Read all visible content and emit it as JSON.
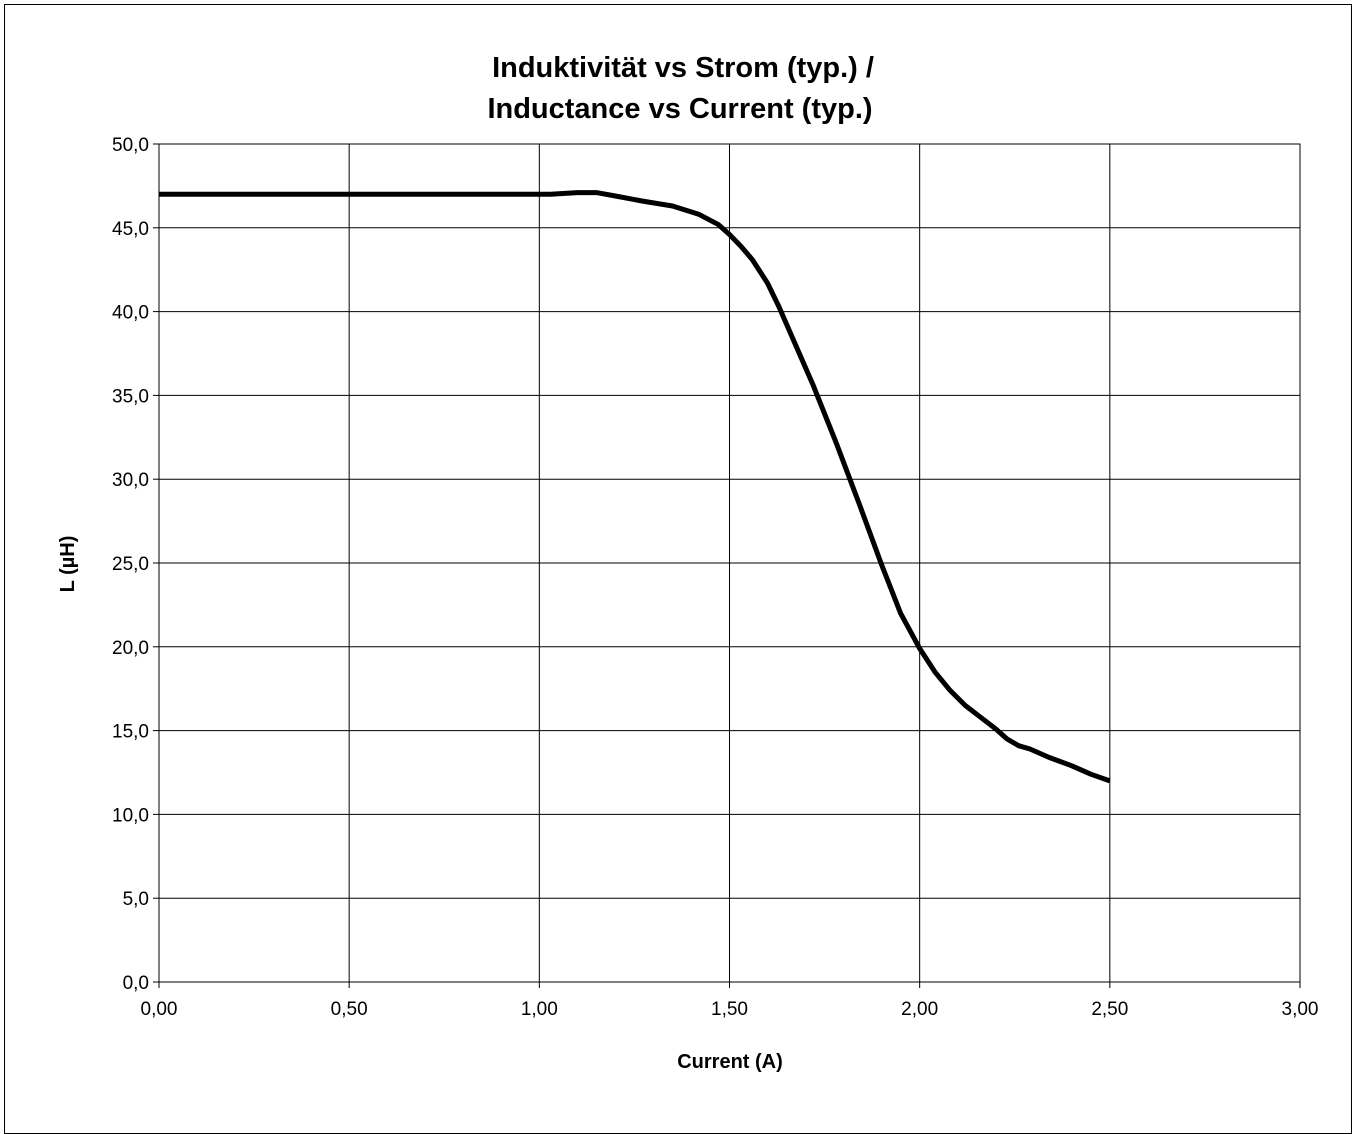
{
  "chart_data": {
    "type": "line",
    "title_lines": [
      "Induktivität vs Strom (typ.) /",
      "Inductance vs Current (typ.)"
    ],
    "xlabel": "Current (A)",
    "ylabel": "L (µH)",
    "xlim": [
      0,
      3
    ],
    "ylim": [
      0,
      50
    ],
    "x_ticks": [
      0,
      0.5,
      1,
      1.5,
      2,
      2.5,
      3
    ],
    "x_tick_labels": [
      "0,00",
      "0,50",
      "1,00",
      "1,50",
      "2,00",
      "2,50",
      "3,00"
    ],
    "y_ticks": [
      0,
      5,
      10,
      15,
      20,
      25,
      30,
      35,
      40,
      45,
      50
    ],
    "y_tick_labels": [
      "0,0",
      "5,0",
      "10,0",
      "15,0",
      "20,0",
      "25,0",
      "30,0",
      "35,0",
      "40,0",
      "45,0",
      "50,0"
    ],
    "grid": true,
    "legend": false,
    "line_color": "#000000",
    "series": [
      {
        "x": [
          0.0,
          0.1,
          0.5,
          1.0,
          1.03,
          1.1,
          1.15,
          1.2,
          1.27,
          1.35,
          1.42,
          1.47,
          1.5,
          1.53,
          1.56,
          1.6,
          1.63,
          1.67,
          1.72,
          1.78,
          1.84,
          1.9,
          1.95,
          2.0,
          2.04,
          2.08,
          2.12,
          2.16,
          2.2,
          2.23,
          2.26,
          2.29,
          2.34,
          2.4,
          2.45,
          2.5
        ],
        "y": [
          47.0,
          47.0,
          47.0,
          47.0,
          47.0,
          47.1,
          47.1,
          46.9,
          46.6,
          46.3,
          45.8,
          45.2,
          44.6,
          43.9,
          43.1,
          41.7,
          40.3,
          38.2,
          35.6,
          32.2,
          28.6,
          24.9,
          22.0,
          19.9,
          18.5,
          17.4,
          16.5,
          15.8,
          15.1,
          14.5,
          14.1,
          13.9,
          13.4,
          12.9,
          12.4,
          12.0
        ]
      }
    ]
  }
}
